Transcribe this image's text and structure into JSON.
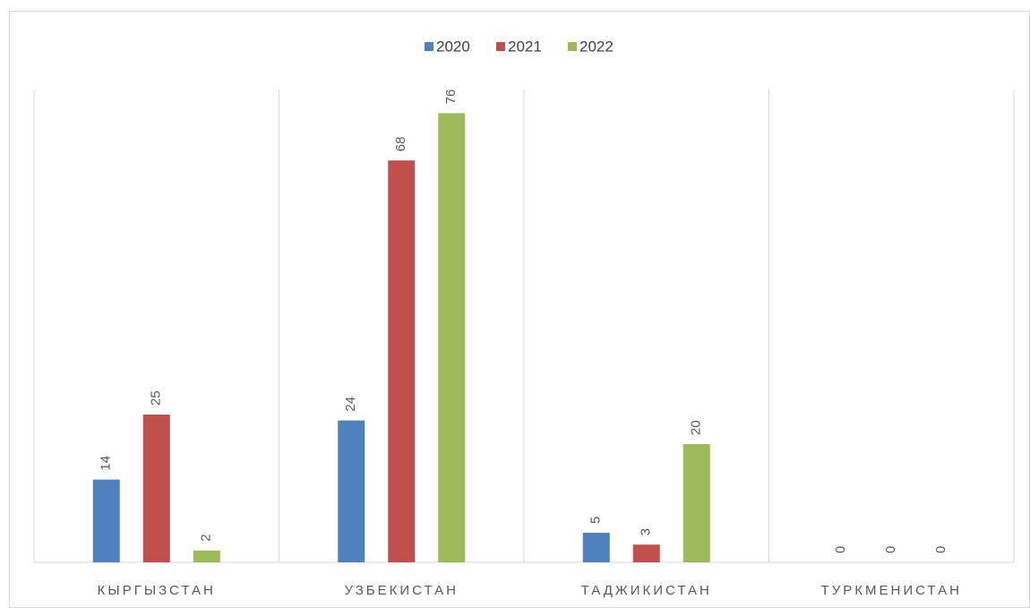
{
  "chart_data": {
    "type": "bar",
    "categories": [
      "КЫРГЫЗСТАН",
      "УЗБЕКИСТАН",
      "ТАДЖИКИСТАН",
      "ТУРКМЕНИСТАН"
    ],
    "series": [
      {
        "name": "2020",
        "color": "#4f81bd",
        "values": [
          14,
          24,
          5,
          0
        ]
      },
      {
        "name": "2021",
        "color": "#c0504d",
        "values": [
          25,
          68,
          3,
          0
        ]
      },
      {
        "name": "2022",
        "color": "#9bbb59",
        "values": [
          2,
          76,
          20,
          0
        ]
      }
    ],
    "ylim": [
      0,
      80
    ]
  }
}
